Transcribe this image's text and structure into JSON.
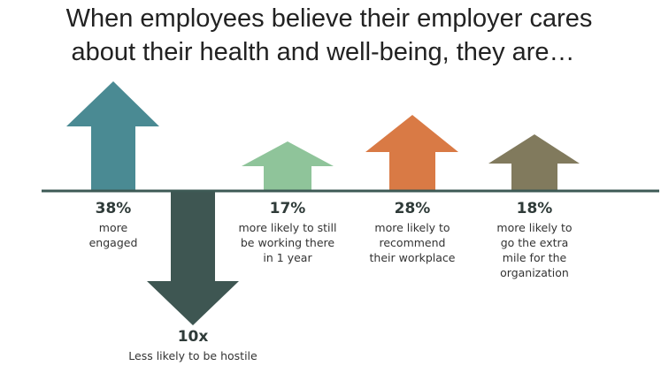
{
  "title": {
    "lines": [
      "When employees believe their employer cares",
      "about their health and well-being, they are…"
    ]
  },
  "items": [
    {
      "value": "38%",
      "description": [
        "more",
        "engaged"
      ]
    },
    {
      "value": "10x",
      "description": [
        "Less likely to be hostile"
      ]
    },
    {
      "value": "17%",
      "description": [
        "more likely to still",
        "be working there",
        "in 1 year"
      ]
    },
    {
      "value": "28%",
      "description": [
        "more likely to",
        "recommend",
        "their workplace"
      ]
    },
    {
      "value": "18%",
      "description": [
        "more likely to",
        "go the extra",
        "mile for the",
        "organization"
      ]
    }
  ]
}
